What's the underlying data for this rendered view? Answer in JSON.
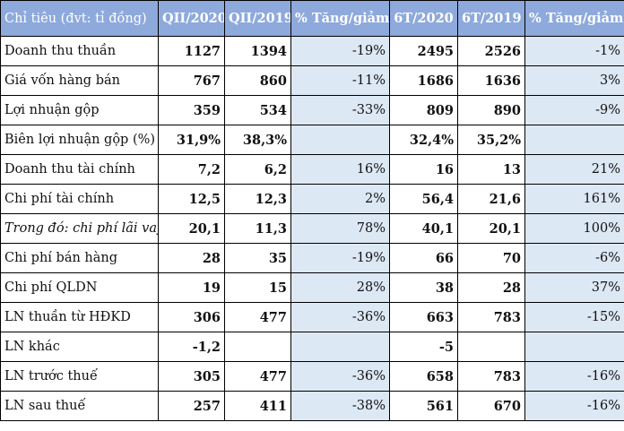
{
  "table": {
    "headers": [
      "Chỉ tiêu (đvt: tỉ đồng)",
      "QII/2020",
      "QII/2019",
      "% Tăng/giảm",
      "6T/2020",
      "6T/2019",
      "% Tăng/giảm"
    ],
    "rows": [
      {
        "label": "Doanh thu thuần",
        "italic": false,
        "q2_2020": "1127",
        "q2_2019": "1394",
        "q_change": "-19%",
        "h1_2020": "2495",
        "h1_2019": "2526",
        "h_change": "-1%"
      },
      {
        "label": "Giá vốn hàng bán",
        "italic": false,
        "q2_2020": "767",
        "q2_2019": "860",
        "q_change": "-11%",
        "h1_2020": "1686",
        "h1_2019": "1636",
        "h_change": "3%"
      },
      {
        "label": "Lợi nhuận gộp",
        "italic": false,
        "q2_2020": "359",
        "q2_2019": "534",
        "q_change": "-33%",
        "h1_2020": "809",
        "h1_2019": "890",
        "h_change": "-9%"
      },
      {
        "label": "Biên lợi nhuận gộp (%)",
        "italic": false,
        "q2_2020": "31,9%",
        "q2_2019": "38,3%",
        "q_change": "",
        "h1_2020": "32,4%",
        "h1_2019": "35,2%",
        "h_change": ""
      },
      {
        "label": "Doanh thu tài chính",
        "italic": false,
        "q2_2020": "7,2",
        "q2_2019": "6,2",
        "q_change": "16%",
        "h1_2020": "16",
        "h1_2019": "13",
        "h_change": "21%"
      },
      {
        "label": "Chi phí tài chính",
        "italic": false,
        "q2_2020": "12,5",
        "q2_2019": "12,3",
        "q_change": "2%",
        "h1_2020": "56,4",
        "h1_2019": "21,6",
        "h_change": "161%"
      },
      {
        "label": "Trong đó: chi phí lãi vay",
        "italic": true,
        "q2_2020": "20,1",
        "q2_2019": "11,3",
        "q_change": "78%",
        "h1_2020": "40,1",
        "h1_2019": "20,1",
        "h_change": "100%"
      },
      {
        "label": "Chi phí bán hàng",
        "italic": false,
        "q2_2020": "28",
        "q2_2019": "35",
        "q_change": "-19%",
        "h1_2020": "66",
        "h1_2019": "70",
        "h_change": "-6%"
      },
      {
        "label": "Chi phí QLDN",
        "italic": false,
        "q2_2020": "19",
        "q2_2019": "15",
        "q_change": "28%",
        "h1_2020": "38",
        "h1_2019": "28",
        "h_change": "37%"
      },
      {
        "label": "LN thuần từ HĐKD",
        "italic": false,
        "q2_2020": "306",
        "q2_2019": "477",
        "q_change": "-36%",
        "h1_2020": "663",
        "h1_2019": "783",
        "h_change": "-15%"
      },
      {
        "label": "LN khác",
        "italic": false,
        "q2_2020": "-1,2",
        "q2_2019": "",
        "q_change": "",
        "h1_2020": "-5",
        "h1_2019": "",
        "h_change": ""
      },
      {
        "label": "LN trước thuế",
        "italic": false,
        "q2_2020": "305",
        "q2_2019": "477",
        "q_change": "-36%",
        "h1_2020": "658",
        "h1_2019": "783",
        "h_change": "-16%"
      },
      {
        "label": "LN sau thuế",
        "italic": false,
        "q2_2020": "257",
        "q2_2019": "411",
        "q_change": "-38%",
        "h1_2020": "561",
        "h1_2019": "670",
        "h_change": "-16%"
      }
    ]
  }
}
